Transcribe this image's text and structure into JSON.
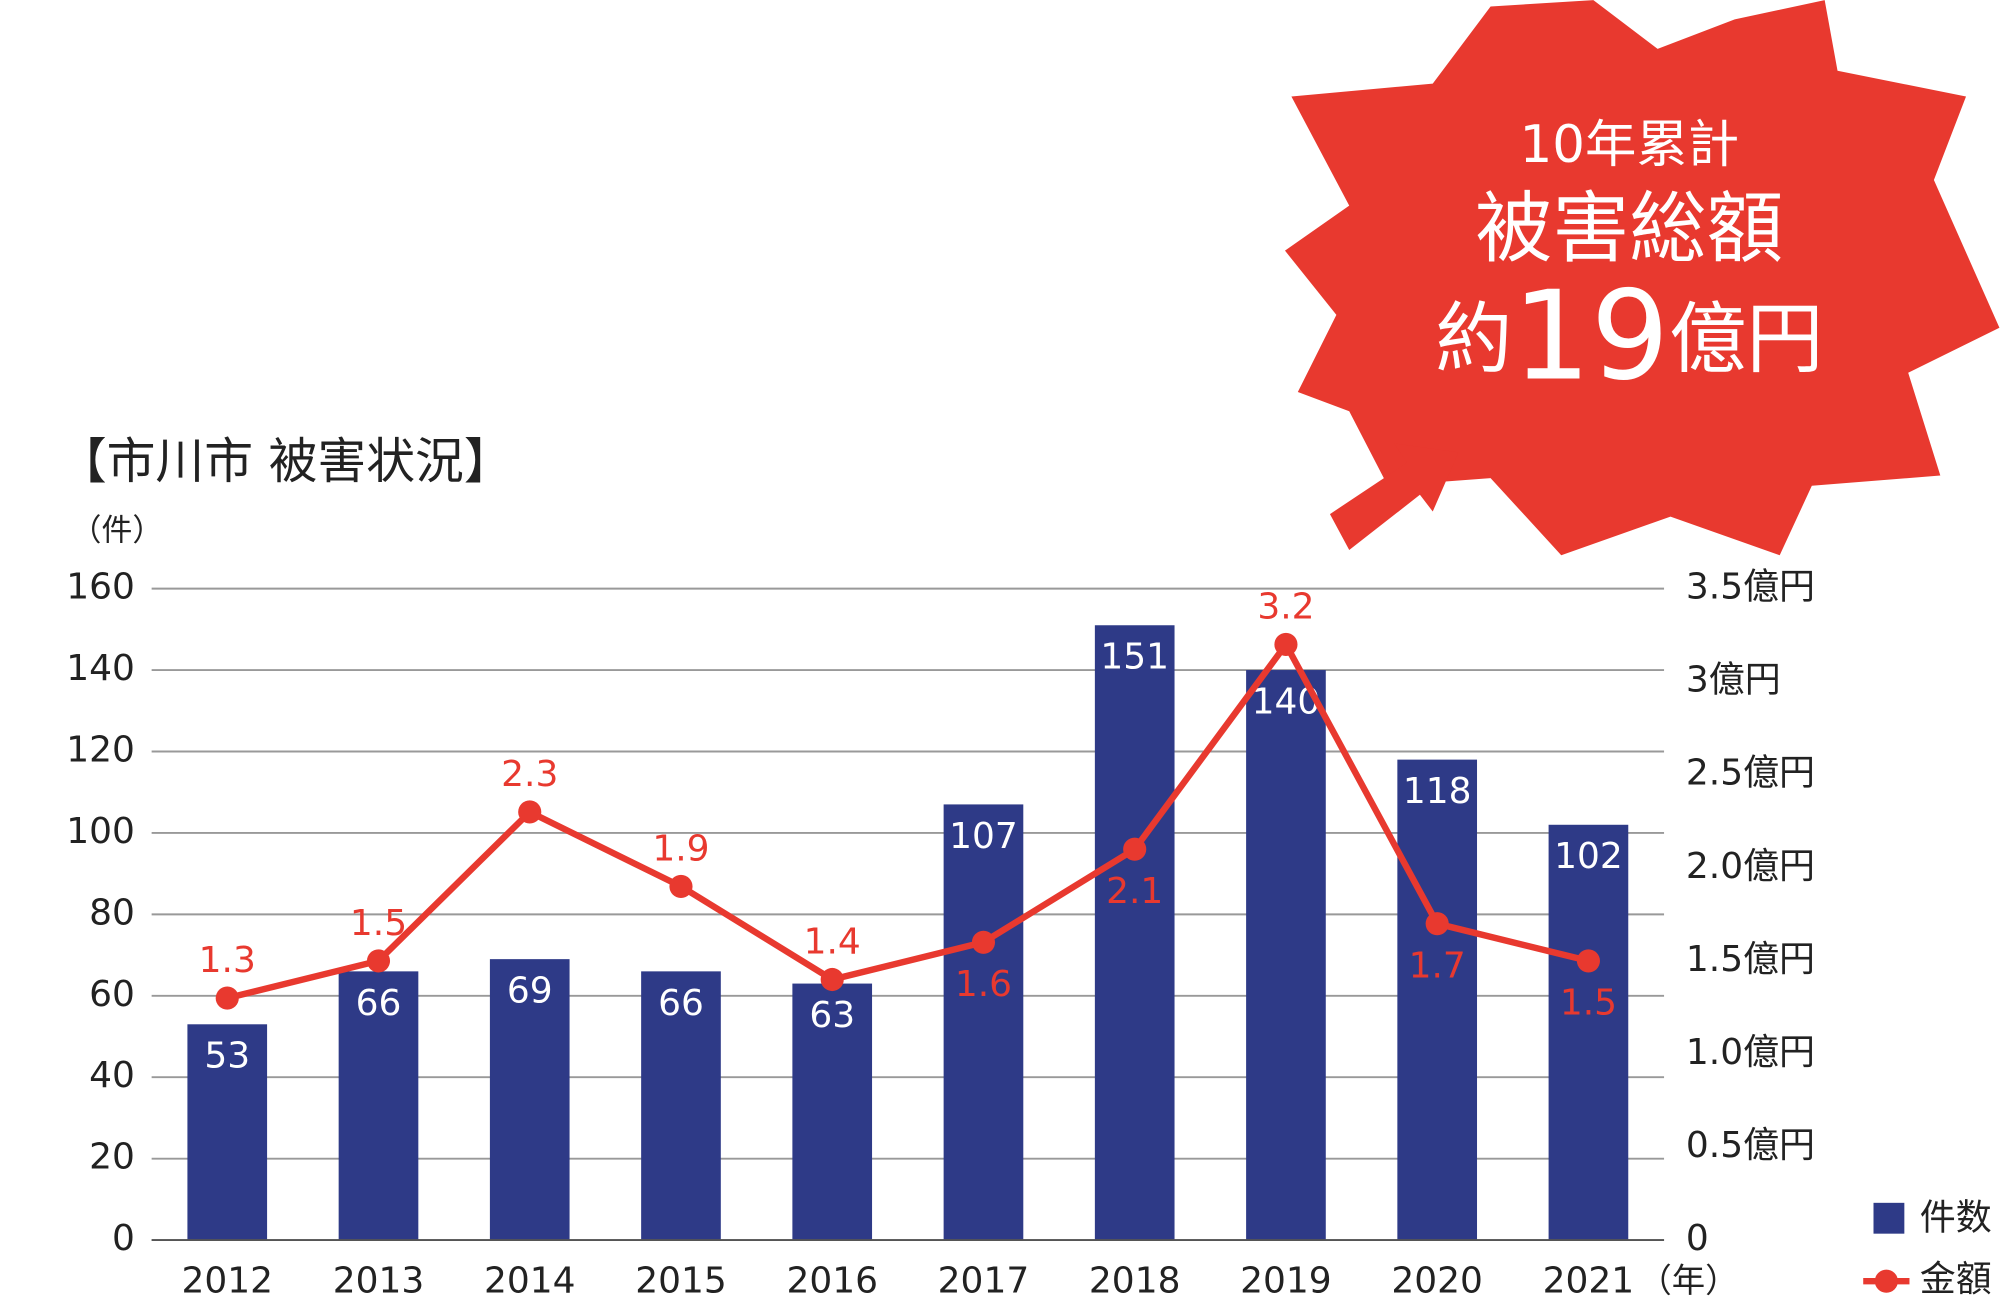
{
  "chart_data": {
    "type": "bar_line",
    "title": "【市川市 被害状況】",
    "y_label": "（件）",
    "x_label": "（年）",
    "annotation": [
      "10年累計",
      "被害総額"
    ],
    "annotation_amount": [
      "約",
      "19",
      "億円"
    ],
    "categories": [
      "2012",
      "2013",
      "2014",
      "2015",
      "2016",
      "2017",
      "2018",
      "2019",
      "2020",
      "2021"
    ],
    "series": [
      {
        "name": "件数",
        "color": "#2e3a87",
        "values": [
          53,
          66,
          69,
          66,
          63,
          107,
          151,
          140,
          118,
          102
        ]
      },
      {
        "name": "金額",
        "color": "#e8392f",
        "axis": "y2",
        "values": [
          1.3,
          1.5,
          2.3,
          1.9,
          1.4,
          1.6,
          2.1,
          3.2,
          1.7,
          1.5
        ]
      }
    ],
    "ylim": [
      0,
      160
    ],
    "yticks": [
      0,
      20,
      40,
      60,
      80,
      100,
      120,
      140,
      160
    ],
    "y2lim": [
      0,
      3.5
    ],
    "y2ticks": [
      0,
      {
        "value": 0.5,
        "label": "0.5億円"
      },
      {
        "value": 1.0,
        "label": "1.0億円"
      },
      {
        "value": 1.5,
        "label": "1.5億円"
      },
      {
        "value": 2.0,
        "label": "2.0億円"
      },
      {
        "value": 2.5,
        "label": "2.5億円"
      },
      {
        "value": 3,
        "label": "3億円"
      },
      {
        "value": 3.5,
        "label": "3.5億円"
      }
    ],
    "grid": true,
    "legend": "bottom-right"
  }
}
